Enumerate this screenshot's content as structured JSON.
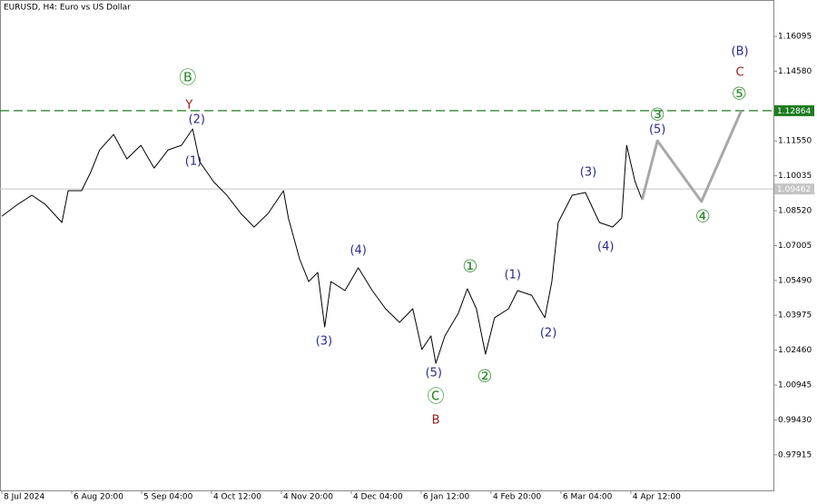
{
  "chart_data": {
    "type": "line",
    "title": "EURUSD, H4:  Euro vs US Dollar",
    "xlim": [
      -0.026,
      11.04
    ],
    "ylim": [
      0.96371,
      1.17673
    ],
    "xticks": [
      {
        "value": 0,
        "label": "8 Jul 2024"
      },
      {
        "value": 1,
        "label": "6 Aug 20:00"
      },
      {
        "value": 2,
        "label": "5 Sep 04:00"
      },
      {
        "value": 3,
        "label": "4 Oct 12:00"
      },
      {
        "value": 4,
        "label": "4 Nov 20:00"
      },
      {
        "value": 5,
        "label": "4 Dec 04:00"
      },
      {
        "value": 6,
        "label": "6 Jan 12:00"
      },
      {
        "value": 7,
        "label": "4 Feb 20:00"
      },
      {
        "value": 8,
        "label": "6 Mar 04:00"
      },
      {
        "value": 9,
        "label": "4 Apr 12:00"
      }
    ],
    "yticks": [
      1.16095,
      {
        "value": 1.1458,
        "label": "1.14580"
      },
      {
        "value": 1.1155,
        "label": "1.11550"
      },
      1.10035,
      {
        "value": 1.0852,
        "label": "1.08520"
      },
      1.07005,
      {
        "value": 1.0549,
        "label": "1.05490"
      },
      1.03975,
      {
        "value": 1.0246,
        "label": "1.02460"
      },
      1.00945,
      {
        "value": 0.9943,
        "label": "0.99430"
      },
      0.97915
    ],
    "series": [
      {
        "color": "#000000",
        "x": [
          0,
          0.23,
          0.43,
          0.62,
          0.86,
          0.95,
          1.14,
          1.27,
          1.4,
          1.6,
          1.79,
          1.99,
          2.18,
          2.38,
          2.57,
          2.73,
          2.83,
          3.03,
          3.22,
          3.42,
          3.61,
          3.81,
          4.03,
          4.1,
          4.26,
          4.39,
          4.52,
          4.62,
          4.71,
          4.91,
          5.1,
          5.3,
          5.49,
          5.69,
          5.88,
          6.01,
          6.14,
          6.21,
          6.34,
          6.53,
          6.66,
          6.79,
          6.92,
          7.05,
          7.25,
          7.38,
          7.58,
          7.77,
          7.87,
          7.96,
          8.16,
          8.35,
          8.55,
          8.74,
          8.87,
          8.94,
          9.06,
          9.16
        ],
        "values": [
          1.0828,
          1.088,
          1.0919,
          1.088,
          1.0801,
          1.0939,
          1.0939,
          1.1018,
          1.1116,
          1.1183,
          1.1077,
          1.1136,
          1.1037,
          1.1116,
          1.1136,
          1.1207,
          1.1065,
          1.0978,
          1.0919,
          1.084,
          1.0781,
          1.084,
          1.0939,
          1.082,
          1.0643,
          1.0544,
          1.0584,
          1.0347,
          1.0544,
          1.0505,
          1.0604,
          1.0505,
          1.0426,
          1.0367,
          1.0426,
          1.0249,
          1.0308,
          1.0189,
          1.0308,
          1.0406,
          1.0513,
          1.0426,
          1.0229,
          1.0387,
          1.0426,
          1.0505,
          1.0485,
          1.0387,
          1.0544,
          1.0801,
          1.0919,
          1.0931,
          1.0801,
          1.0781,
          1.082,
          1.1136,
          1.0978,
          1.0899
        ]
      },
      {
        "color": "#a8a8a8",
        "x": [
          9.16,
          9.38,
          10.01,
          10.58
        ],
        "values": [
          1.0899,
          1.1156,
          1.0892,
          1.1286
        ]
      }
    ],
    "levels": [
      {
        "value": 1.12864,
        "color": "#1e7b1e",
        "dashed": true
      },
      {
        "value": 1.09462,
        "color": "#c4c4c4",
        "dashed": false
      }
    ],
    "annotations": [
      {
        "text": "Ⓑ",
        "x": 2.66,
        "y": 1.1428,
        "color": "#2e8b2e"
      },
      {
        "text": "Y",
        "x": 2.68,
        "y": 1.131,
        "color": "#9b1c1c"
      },
      {
        "text": "(2)",
        "x": 2.79,
        "y": 1.1247,
        "color": "#2a2a8c"
      },
      {
        "text": "(1)",
        "x": 2.74,
        "y": 1.1065,
        "color": "#2a2a8c"
      },
      {
        "text": "(3)",
        "x": 4.61,
        "y": 1.0284,
        "color": "#2a2a8c"
      },
      {
        "text": "(4)",
        "x": 5.1,
        "y": 1.0679,
        "color": "#2a2a8c"
      },
      {
        "text": "(5)",
        "x": 6.18,
        "y": 1.0146,
        "color": "#2a2a8c"
      },
      {
        "text": "Ⓒ",
        "x": 6.21,
        "y": 1.0043,
        "color": "#2e8b2e"
      },
      {
        "text": "B",
        "x": 6.21,
        "y": 0.9941,
        "color": "#9b1c1c"
      },
      {
        "text": "①",
        "x": 6.7,
        "y": 1.0608,
        "color": "#2e8b2e"
      },
      {
        "text": "②",
        "x": 6.91,
        "y": 1.013,
        "color": "#2e8b2e"
      },
      {
        "text": "(1)",
        "x": 7.31,
        "y": 1.0572,
        "color": "#2a2a8c"
      },
      {
        "text": "(2)",
        "x": 7.82,
        "y": 1.032,
        "color": "#2a2a8c"
      },
      {
        "text": "(3)",
        "x": 8.39,
        "y": 1.1018,
        "color": "#2a2a8c"
      },
      {
        "text": "(4)",
        "x": 8.64,
        "y": 1.0694,
        "color": "#2a2a8c"
      },
      {
        "text": "③",
        "x": 9.38,
        "y": 1.1266,
        "color": "#2e8b2e"
      },
      {
        "text": "(5)",
        "x": 9.38,
        "y": 1.1203,
        "color": "#2a2a8c"
      },
      {
        "text": "④",
        "x": 10.03,
        "y": 1.0824,
        "color": "#2e8b2e"
      },
      {
        "text": "⑤",
        "x": 10.55,
        "y": 1.1357,
        "color": "#2e8b2e"
      },
      {
        "text": "C",
        "x": 10.56,
        "y": 1.1452,
        "color": "#9b1c1c"
      },
      {
        "text": "(B)",
        "x": 10.56,
        "y": 1.1542,
        "color": "#2a2a8c"
      }
    ]
  }
}
